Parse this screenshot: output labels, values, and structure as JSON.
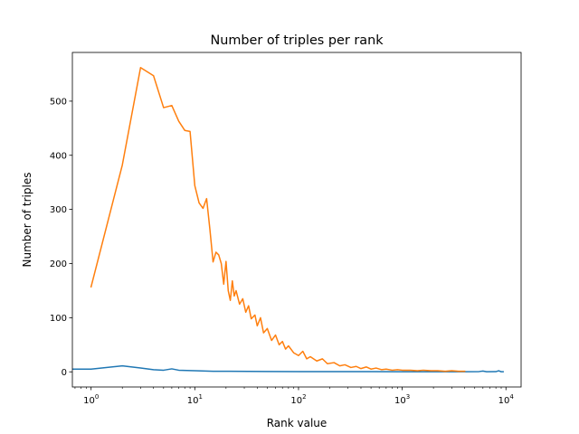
{
  "chart_data": {
    "type": "line",
    "title": "Number of triples per rank",
    "xlabel": "Rank value",
    "ylabel": "Number of triples",
    "xscale": "log",
    "xlim": [
      0.66,
      14000
    ],
    "ylim": [
      -28,
      590
    ],
    "grid": false,
    "legend": "none",
    "x_ticks": [
      {
        "value": 1,
        "base": "10",
        "exp": "0"
      },
      {
        "value": 10,
        "base": "10",
        "exp": "1"
      },
      {
        "value": 100,
        "base": "10",
        "exp": "2"
      },
      {
        "value": 1000,
        "base": "10",
        "exp": "3"
      },
      {
        "value": 10000,
        "base": "10",
        "exp": "4"
      }
    ],
    "y_ticks": [
      {
        "value": 0,
        "label": "0"
      },
      {
        "value": 100,
        "label": "100"
      },
      {
        "value": 200,
        "label": "200"
      },
      {
        "value": 300,
        "label": "300"
      },
      {
        "value": 400,
        "label": "400"
      },
      {
        "value": 500,
        "label": "500"
      }
    ],
    "series": [
      {
        "color": "#1f77b4",
        "points": [
          [
            0.66,
            5
          ],
          [
            1,
            5
          ],
          [
            2,
            11
          ],
          [
            3,
            7
          ],
          [
            4,
            4
          ],
          [
            5,
            3
          ],
          [
            6,
            5.5
          ],
          [
            7,
            3
          ],
          [
            10,
            2
          ],
          [
            15,
            1
          ],
          [
            20,
            1
          ],
          [
            50,
            0.6
          ],
          [
            100,
            0.5
          ],
          [
            200,
            0.3
          ],
          [
            500,
            0.3
          ],
          [
            1000,
            0.2
          ],
          [
            2000,
            0.2
          ],
          [
            4000,
            0.2
          ],
          [
            5500,
            0.5
          ],
          [
            6000,
            1.5
          ],
          [
            6500,
            0.2
          ],
          [
            8000,
            0.3
          ],
          [
            8500,
            2
          ],
          [
            9000,
            0.2
          ],
          [
            9400,
            0.2
          ]
        ]
      },
      {
        "color": "#ff7f0e",
        "points": [
          [
            1,
            157
          ],
          [
            2,
            382
          ],
          [
            3,
            562
          ],
          [
            4,
            547
          ],
          [
            5,
            488
          ],
          [
            6,
            492
          ],
          [
            7,
            463
          ],
          [
            8,
            446
          ],
          [
            9,
            444
          ],
          [
            10,
            344
          ],
          [
            11,
            312
          ],
          [
            12,
            302
          ],
          [
            13,
            320
          ],
          [
            14,
            262
          ],
          [
            15,
            203
          ],
          [
            16,
            221
          ],
          [
            17,
            216
          ],
          [
            18,
            200
          ],
          [
            19,
            162
          ],
          [
            20,
            204
          ],
          [
            21,
            150
          ],
          [
            22,
            132
          ],
          [
            23,
            168
          ],
          [
            24,
            140
          ],
          [
            25,
            150
          ],
          [
            27,
            125
          ],
          [
            29,
            135
          ],
          [
            31,
            110
          ],
          [
            33,
            122
          ],
          [
            35,
            98
          ],
          [
            38,
            105
          ],
          [
            40,
            85
          ],
          [
            43,
            100
          ],
          [
            46,
            72
          ],
          [
            50,
            80
          ],
          [
            55,
            58
          ],
          [
            60,
            68
          ],
          [
            65,
            50
          ],
          [
            70,
            56
          ],
          [
            75,
            42
          ],
          [
            80,
            48
          ],
          [
            90,
            35
          ],
          [
            100,
            30
          ],
          [
            110,
            38
          ],
          [
            120,
            24
          ],
          [
            130,
            28
          ],
          [
            150,
            20
          ],
          [
            170,
            24
          ],
          [
            190,
            15
          ],
          [
            220,
            17
          ],
          [
            250,
            11
          ],
          [
            280,
            13
          ],
          [
            320,
            8
          ],
          [
            360,
            10
          ],
          [
            400,
            6
          ],
          [
            450,
            9
          ],
          [
            500,
            5
          ],
          [
            560,
            7
          ],
          [
            630,
            4
          ],
          [
            700,
            5
          ],
          [
            800,
            3
          ],
          [
            900,
            4
          ],
          [
            1000,
            3
          ],
          [
            1200,
            3
          ],
          [
            1400,
            2
          ],
          [
            1600,
            3
          ],
          [
            1900,
            2
          ],
          [
            2200,
            2
          ],
          [
            2600,
            1
          ],
          [
            3000,
            2
          ],
          [
            3500,
            1
          ],
          [
            4000,
            1
          ]
        ]
      }
    ]
  }
}
